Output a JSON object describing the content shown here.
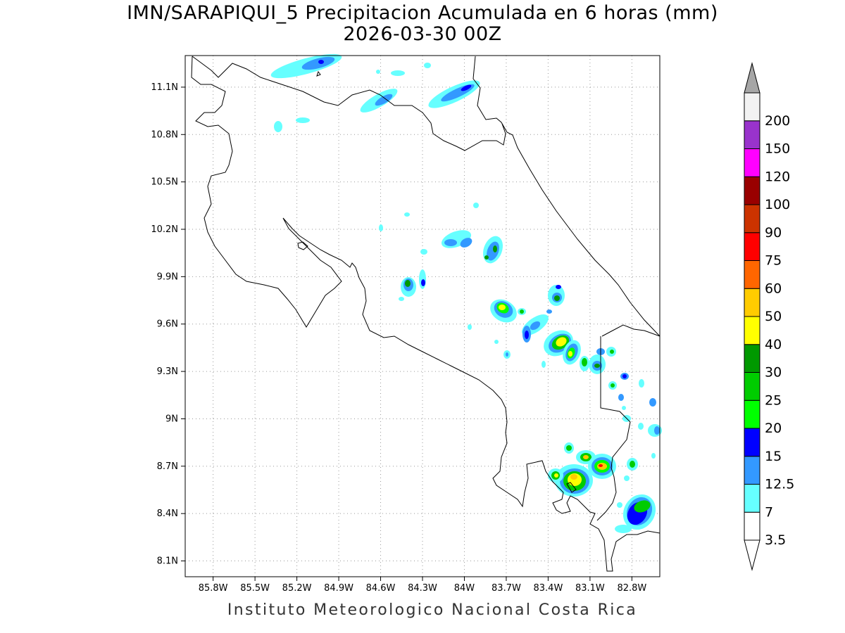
{
  "title": "IMN/SARAPIQUI_5 Precipitacion Acumulada en 6 horas (mm)",
  "subtitle": "2026-03-30 00Z",
  "footer": "Instituto Meteorologico Nacional Costa Rica",
  "map": {
    "lon_range": [
      -86.0,
      -82.6
    ],
    "lat_range": [
      8.0,
      11.3
    ],
    "lon_ticks": [
      {
        "value": -85.8,
        "label": "85.8W"
      },
      {
        "value": -85.5,
        "label": "85.5W"
      },
      {
        "value": -85.2,
        "label": "85.2W"
      },
      {
        "value": -84.9,
        "label": "84.9W"
      },
      {
        "value": -84.6,
        "label": "84.6W"
      },
      {
        "value": -84.3,
        "label": "84.3W"
      },
      {
        "value": -84.0,
        "label": "84W"
      },
      {
        "value": -83.7,
        "label": "83.7W"
      },
      {
        "value": -83.4,
        "label": "83.4W"
      },
      {
        "value": -83.1,
        "label": "83.1W"
      },
      {
        "value": -82.8,
        "label": "82.8W"
      }
    ],
    "lat_ticks": [
      {
        "value": 8.1,
        "label": "8.1N"
      },
      {
        "value": 8.4,
        "label": "8.4N"
      },
      {
        "value": 8.7,
        "label": "8.7N"
      },
      {
        "value": 9.0,
        "label": "9N"
      },
      {
        "value": 9.3,
        "label": "9.3N"
      },
      {
        "value": 9.6,
        "label": "9.6N"
      },
      {
        "value": 9.9,
        "label": "9.9N"
      },
      {
        "value": 10.2,
        "label": "10.2N"
      },
      {
        "value": 10.5,
        "label": "10.5N"
      },
      {
        "value": 10.8,
        "label": "10.8N"
      },
      {
        "value": 11.1,
        "label": "11.1N"
      }
    ],
    "grid": true,
    "coastline_color": "#000000"
  },
  "colorbar": {
    "levels": [
      {
        "label": "3.5",
        "color": "#ffffff"
      },
      {
        "label": "7",
        "color": "#66ffff"
      },
      {
        "label": "12.5",
        "color": "#3399ff"
      },
      {
        "label": "15",
        "color": "#0000ff"
      },
      {
        "label": "20",
        "color": "#00ff00"
      },
      {
        "label": "25",
        "color": "#00cc00"
      },
      {
        "label": "30",
        "color": "#009900"
      },
      {
        "label": "40",
        "color": "#ffff00"
      },
      {
        "label": "50",
        "color": "#ffcc00"
      },
      {
        "label": "60",
        "color": "#ff6600"
      },
      {
        "label": "75",
        "color": "#ff0000"
      },
      {
        "label": "90",
        "color": "#cc3300"
      },
      {
        "label": "100",
        "color": "#990000"
      },
      {
        "label": "120",
        "color": "#ff00ff"
      },
      {
        "label": "150",
        "color": "#9933cc"
      },
      {
        "label": "200",
        "color": "#f2f2f2"
      }
    ],
    "top_arrow_color": "#a6a6a6",
    "bottom_arrow_color": "#ffffff"
  }
}
